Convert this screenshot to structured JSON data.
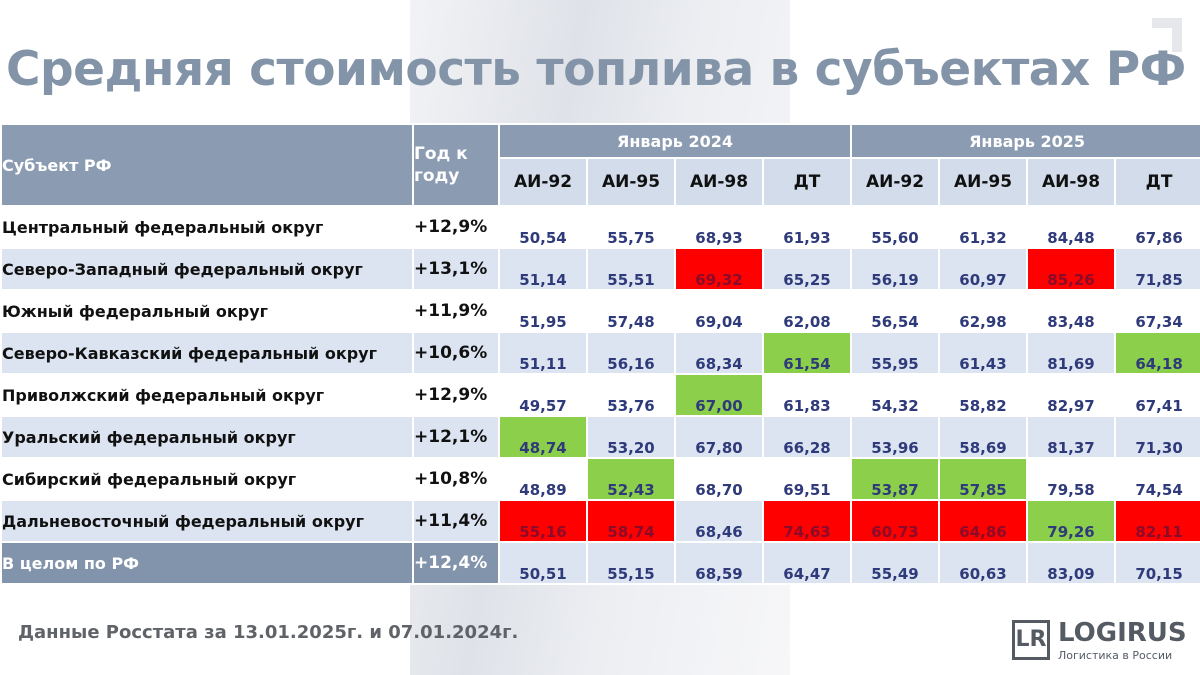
{
  "title": "Средняя стоимость топлива в субъектах РФ",
  "table": {
    "subject_header": "Субъект РФ",
    "yoy_header": "Год к году",
    "groups": [
      "Январь 2024",
      "Январь 2025"
    ],
    "fuels": [
      "АИ-92",
      "АИ-95",
      "АИ-98",
      "ДТ"
    ],
    "rows": [
      {
        "name": "Центральный федеральный округ",
        "yoy": "+12,9%",
        "v2024": [
          "50,54",
          "55,75",
          "68,93",
          "61,93"
        ],
        "v2025": [
          "55,60",
          "61,32",
          "84,48",
          "67,86"
        ]
      },
      {
        "name": "Северо-Западный федеральный округ",
        "yoy": "+13,1%",
        "v2024": [
          "51,14",
          "55,51",
          "69,32",
          "65,25"
        ],
        "v2025": [
          "56,19",
          "60,97",
          "85,26",
          "71,85"
        ]
      },
      {
        "name": "Южный федеральный округ",
        "yoy": "+11,9%",
        "v2024": [
          "51,95",
          "57,48",
          "69,04",
          "62,08"
        ],
        "v2025": [
          "56,54",
          "62,98",
          "83,48",
          "67,34"
        ]
      },
      {
        "name": "Северо-Кавказский федеральный округ",
        "yoy": "+10,6%",
        "v2024": [
          "51,11",
          "56,16",
          "68,34",
          "61,54"
        ],
        "v2025": [
          "55,95",
          "61,43",
          "81,69",
          "64,18"
        ]
      },
      {
        "name": "Приволжский федеральный округ",
        "yoy": "+12,9%",
        "v2024": [
          "49,57",
          "53,76",
          "67,00",
          "61,83"
        ],
        "v2025": [
          "54,32",
          "58,82",
          "82,97",
          "67,41"
        ]
      },
      {
        "name": "Уральский федеральный округ",
        "yoy": "+12,1%",
        "v2024": [
          "48,74",
          "53,20",
          "67,80",
          "66,28"
        ],
        "v2025": [
          "53,96",
          "58,69",
          "81,37",
          "71,30"
        ]
      },
      {
        "name": "Сибирский федеральный округ",
        "yoy": "+10,8%",
        "v2024": [
          "48,89",
          "52,43",
          "68,70",
          "69,51"
        ],
        "v2025": [
          "53,87",
          "57,85",
          "79,58",
          "74,54"
        ]
      },
      {
        "name": "Дальневосточный федеральный округ",
        "yoy": "+11,4%",
        "v2024": [
          "55,16",
          "58,74",
          "68,46",
          "74,63"
        ],
        "v2025": [
          "60,73",
          "64,86",
          "79,26",
          "82,11"
        ]
      },
      {
        "name": "В целом по РФ",
        "yoy": "+12,4%",
        "v2024": [
          "50,51",
          "55,15",
          "68,59",
          "64,47"
        ],
        "v2025": [
          "55,49",
          "60,63",
          "83,09",
          "70,15"
        ]
      }
    ],
    "highlights": {
      "red": [
        [
          1,
          2
        ],
        [
          1,
          6
        ],
        [
          7,
          0
        ],
        [
          7,
          1
        ],
        [
          7,
          3
        ],
        [
          7,
          4
        ],
        [
          7,
          5
        ],
        [
          7,
          7
        ]
      ],
      "green": [
        [
          3,
          3
        ],
        [
          3,
          7
        ],
        [
          4,
          2
        ],
        [
          5,
          0
        ],
        [
          6,
          1
        ],
        [
          6,
          4
        ],
        [
          6,
          5
        ],
        [
          7,
          6
        ]
      ]
    },
    "colors": {
      "max": "#ff0000",
      "min": "#8ccf4a"
    }
  },
  "footer": "Данные Росстата за 13.01.2025г. и 07.01.2024г.",
  "logo": {
    "mark": "LR",
    "name": "LOGIRUS",
    "tagline": "Логистика в России"
  }
}
